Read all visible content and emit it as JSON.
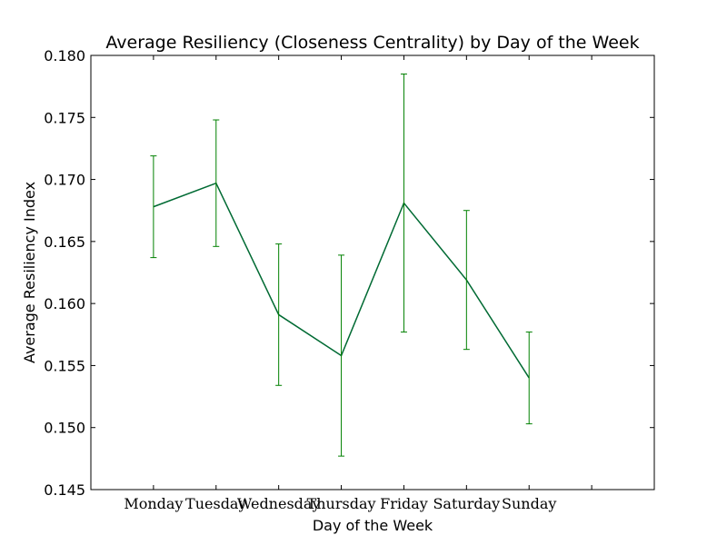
{
  "chart_data": {
    "type": "line",
    "title": "Average Resiliency (Closeness Centrality) by Day of the Week",
    "xlabel": "Day of the Week",
    "ylabel": "Average Resiliency Index",
    "categories": [
      "Monday",
      "Tuesday",
      "Wednesday",
      "Thursday",
      "Friday",
      "Saturday",
      "Sunday"
    ],
    "x_range": [
      -1,
      8
    ],
    "ylim": [
      0.145,
      0.18
    ],
    "y_ticks": [
      0.145,
      0.15,
      0.155,
      0.16,
      0.165,
      0.17,
      0.175,
      0.18
    ],
    "y_tick_labels": [
      "0.145",
      "0.150",
      "0.155",
      "0.160",
      "0.165",
      "0.170",
      "0.175",
      "0.180"
    ],
    "grid": false,
    "colors": {
      "line": "#006a33",
      "errorbar": "#008000",
      "frame": "#000000"
    },
    "series": [
      {
        "values": [
          0.1678,
          0.1697,
          0.1591,
          0.1558,
          0.1681,
          0.1619,
          0.154
        ],
        "errors": [
          0.0041,
          0.0051,
          0.0057,
          0.0081,
          0.0104,
          0.0056,
          0.0037
        ]
      }
    ]
  }
}
